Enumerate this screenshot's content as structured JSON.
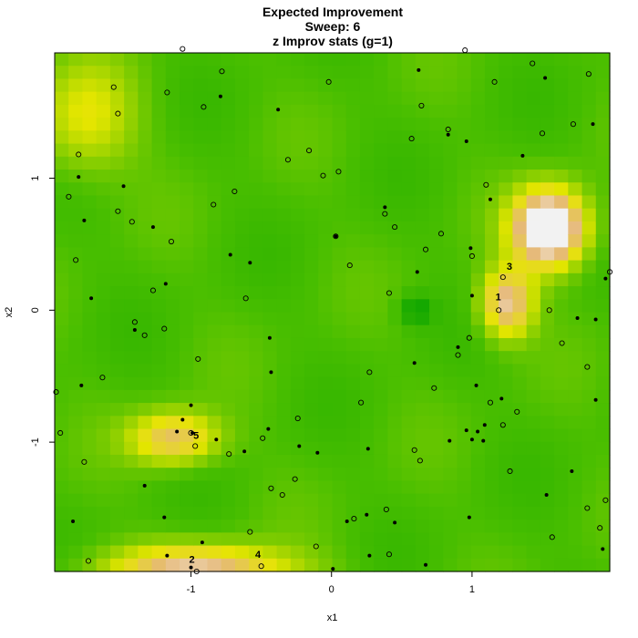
{
  "chart_data": {
    "type": "heatmap",
    "title": "Expected Improvement",
    "subtitle": "Sweep: 6",
    "subtitle2": "z Improv stats (g=1)",
    "xlabel": "x1",
    "ylabel": "x2",
    "xlim": [
      -1.97,
      1.98
    ],
    "ylim": [
      -1.98,
      1.95
    ],
    "xticks": [
      -1,
      0,
      1
    ],
    "yticks": [
      -1,
      0,
      1
    ],
    "colors": {
      "low": "#00a000",
      "mid": "#e6e600",
      "high": "#f2f2f2"
    },
    "field_peaks": [
      {
        "x": 1.55,
        "y": 0.62,
        "sx": 0.18,
        "sy": 0.2,
        "amp": 1.0
      },
      {
        "x": 1.25,
        "y": 0.05,
        "sx": 0.13,
        "sy": 0.18,
        "amp": 0.62
      },
      {
        "x": -1.12,
        "y": -0.97,
        "sx": 0.22,
        "sy": 0.14,
        "amp": 0.52
      },
      {
        "x": -0.95,
        "y": -1.97,
        "sx": 0.45,
        "sy": 0.13,
        "amp": 0.62
      },
      {
        "x": -1.75,
        "y": 1.45,
        "sx": 0.25,
        "sy": 0.3,
        "amp": 0.3
      }
    ],
    "candidates": [
      [
        -1.55,
        1.69
      ],
      [
        -1.52,
        1.49
      ],
      [
        -1.8,
        1.18
      ],
      [
        -1.17,
        1.65
      ],
      [
        -0.91,
        1.54
      ],
      [
        -0.78,
        1.81
      ],
      [
        -0.02,
        1.73
      ],
      [
        0.57,
        1.3
      ],
      [
        0.64,
        1.55
      ],
      [
        0.83,
        1.37
      ],
      [
        1.16,
        1.73
      ],
      [
        1.43,
        1.87
      ],
      [
        1.5,
        1.34
      ],
      [
        1.72,
        1.41
      ],
      [
        1.83,
        1.79
      ],
      [
        -1.06,
        1.98
      ],
      [
        0.95,
        1.97
      ],
      [
        -1.87,
        0.86
      ],
      [
        -1.52,
        0.75
      ],
      [
        -1.42,
        0.67
      ],
      [
        -1.14,
        0.52
      ],
      [
        -0.84,
        0.8
      ],
      [
        -0.69,
        0.9
      ],
      [
        -0.16,
        1.21
      ],
      [
        -0.31,
        1.14
      ],
      [
        -0.06,
        1.02
      ],
      [
        0.05,
        1.05
      ],
      [
        0.38,
        0.73
      ],
      [
        0.45,
        0.63
      ],
      [
        0.67,
        0.46
      ],
      [
        0.78,
        0.58
      ],
      [
        1.1,
        0.95
      ],
      [
        0.03,
        0.56
      ],
      [
        -1.82,
        0.38
      ],
      [
        -1.27,
        0.15
      ],
      [
        -0.61,
        0.09
      ],
      [
        0.13,
        0.34
      ],
      [
        0.41,
        0.13
      ],
      [
        1.22,
        0.25
      ],
      [
        1.0,
        0.41
      ],
      [
        1.19,
        0.0
      ],
      [
        1.55,
        0.0
      ],
      [
        1.98,
        0.29
      ],
      [
        -1.4,
        -0.09
      ],
      [
        -1.33,
        -0.19
      ],
      [
        -1.19,
        -0.14
      ],
      [
        -0.95,
        -0.37
      ],
      [
        -1.63,
        -0.51
      ],
      [
        -1.96,
        -0.62
      ],
      [
        -1.93,
        -0.93
      ],
      [
        -1.76,
        -1.15
      ],
      [
        -1.0,
        -0.93
      ],
      [
        -0.97,
        -1.03
      ],
      [
        -0.73,
        -1.09
      ],
      [
        -0.49,
        -0.97
      ],
      [
        -0.24,
        -0.82
      ],
      [
        0.21,
        -0.7
      ],
      [
        0.27,
        -0.47
      ],
      [
        0.63,
        -1.14
      ],
      [
        0.73,
        -0.59
      ],
      [
        0.9,
        -0.34
      ],
      [
        0.98,
        -0.21
      ],
      [
        1.13,
        -0.7
      ],
      [
        1.22,
        -0.87
      ],
      [
        1.32,
        -0.77
      ],
      [
        1.27,
        -1.22
      ],
      [
        1.64,
        -0.25
      ],
      [
        1.82,
        -0.43
      ],
      [
        -0.43,
        -1.35
      ],
      [
        -0.35,
        -1.4
      ],
      [
        -0.26,
        -1.28
      ],
      [
        0.39,
        -1.51
      ],
      [
        0.59,
        -1.06
      ],
      [
        -0.58,
        -1.68
      ],
      [
        -0.11,
        -1.79
      ],
      [
        0.16,
        -1.58
      ],
      [
        0.41,
        -1.85
      ],
      [
        1.57,
        -1.72
      ],
      [
        1.82,
        -1.5
      ],
      [
        1.95,
        -1.44
      ],
      [
        1.91,
        -1.65
      ],
      [
        -1.73,
        -1.9
      ],
      [
        -0.96,
        -1.98
      ],
      [
        -0.5,
        -1.94
      ]
    ],
    "points": [
      [
        -1.8,
        1.01
      ],
      [
        -1.76,
        0.68
      ],
      [
        -1.48,
        0.94
      ],
      [
        -1.27,
        0.63
      ],
      [
        -0.79,
        1.62
      ],
      [
        -0.38,
        1.52
      ],
      [
        0.62,
        1.82
      ],
      [
        0.83,
        1.33
      ],
      [
        0.96,
        1.28
      ],
      [
        1.36,
        1.17
      ],
      [
        1.52,
        1.76
      ],
      [
        1.86,
        1.41
      ],
      [
        1.13,
        0.84
      ],
      [
        0.38,
        0.78
      ],
      [
        0.99,
        0.47
      ],
      [
        0.61,
        0.29
      ],
      [
        -0.72,
        0.42
      ],
      [
        -0.58,
        0.36
      ],
      [
        -1.18,
        0.2
      ],
      [
        -1.71,
        0.09
      ],
      [
        0.03,
        0.56
      ],
      [
        1.0,
        0.11
      ],
      [
        1.88,
        -0.07
      ],
      [
        1.95,
        0.24
      ],
      [
        -1.4,
        -0.15
      ],
      [
        -0.44,
        -0.21
      ],
      [
        -1.78,
        -0.57
      ],
      [
        -1.0,
        -0.72
      ],
      [
        -0.99,
        -0.93
      ],
      [
        -1.1,
        -0.92
      ],
      [
        -1.06,
        -0.83
      ],
      [
        -0.43,
        -0.47
      ],
      [
        0.59,
        -0.4
      ],
      [
        0.9,
        -0.28
      ],
      [
        1.03,
        -0.57
      ],
      [
        1.0,
        -0.98
      ],
      [
        1.04,
        -0.92
      ],
      [
        1.08,
        -0.99
      ],
      [
        1.09,
        -0.87
      ],
      [
        0.96,
        -0.91
      ],
      [
        0.84,
        -0.99
      ],
      [
        1.21,
        -0.67
      ],
      [
        1.75,
        -0.06
      ],
      [
        1.88,
        -0.68
      ],
      [
        -0.45,
        -0.9
      ],
      [
        -0.23,
        -1.03
      ],
      [
        -0.1,
        -1.08
      ],
      [
        -0.82,
        -0.98
      ],
      [
        -0.62,
        -1.07
      ],
      [
        -1.33,
        -1.33
      ],
      [
        0.26,
        -1.05
      ],
      [
        -1.84,
        -1.6
      ],
      [
        -1.19,
        -1.57
      ],
      [
        0.11,
        -1.6
      ],
      [
        0.25,
        -1.55
      ],
      [
        0.45,
        -1.61
      ],
      [
        0.98,
        -1.57
      ],
      [
        1.71,
        -1.22
      ],
      [
        1.53,
        -1.4
      ],
      [
        -1.17,
        -1.86
      ],
      [
        -1.0,
        -1.95
      ],
      [
        -0.92,
        -1.76
      ],
      [
        0.01,
        -1.96
      ],
      [
        0.27,
        -1.86
      ],
      [
        0.67,
        -1.93
      ],
      [
        1.93,
        -1.81
      ]
    ],
    "labeled_points": [
      {
        "label": "1",
        "x": 1.18,
        "y": 0.02
      },
      {
        "label": "2",
        "x": -1.0,
        "y": -1.97
      },
      {
        "label": "3",
        "x": 1.26,
        "y": 0.25
      },
      {
        "label": "4",
        "x": -0.53,
        "y": -1.93
      },
      {
        "label": "5",
        "x": -0.97,
        "y": -1.03
      }
    ]
  }
}
